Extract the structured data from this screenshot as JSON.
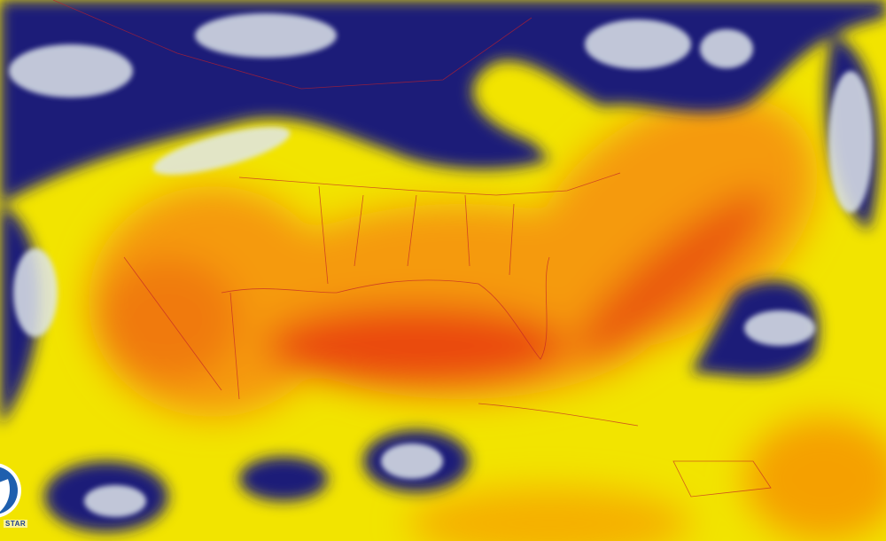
{
  "image": {
    "type": "satellite water vapor imagery",
    "colors": {
      "dry": "#e3260a",
      "mid_dry": "#f5a000",
      "moist": "#f2e400",
      "high_moisture": "#1c1f78",
      "cloud_tops": "#e8eef0",
      "borders": "#c0202a"
    }
  },
  "logo": {
    "name": "NOAA",
    "text": "STAR"
  }
}
